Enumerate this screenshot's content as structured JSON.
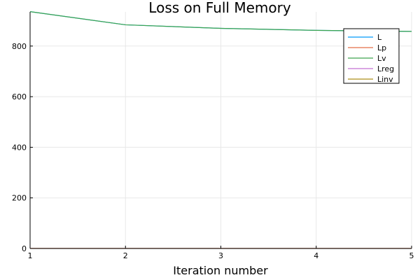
{
  "chart_data": {
    "type": "line",
    "title": "Loss on Full Memory",
    "xlabel": "Iteration number",
    "ylabel": "",
    "x": [
      1,
      2,
      3,
      4,
      5
    ],
    "xlim": [
      1,
      5
    ],
    "ylim": [
      0,
      935
    ],
    "xticks": [
      1,
      2,
      3,
      4,
      5
    ],
    "yticks": [
      0,
      200,
      400,
      600,
      800
    ],
    "grid": true,
    "legend_position": "top-right",
    "series": [
      {
        "name": "L",
        "color": "#009AFA",
        "values": [
          936,
          884,
          870,
          862,
          858
        ]
      },
      {
        "name": "Lp",
        "color": "#E36F47",
        "values": [
          0.5,
          0.4,
          0.4,
          0.3,
          0.3
        ]
      },
      {
        "name": "Lv",
        "color": "#3EA44E",
        "values": [
          936,
          884,
          870,
          862,
          858
        ]
      },
      {
        "name": "Lreg",
        "color": "#C371D2",
        "values": [
          0.1,
          0.1,
          0.1,
          0.1,
          0.1
        ]
      },
      {
        "name": "Linv",
        "color": "#AC8D18",
        "values": [
          0.2,
          0.2,
          0.2,
          0.2,
          0.2
        ]
      }
    ]
  }
}
